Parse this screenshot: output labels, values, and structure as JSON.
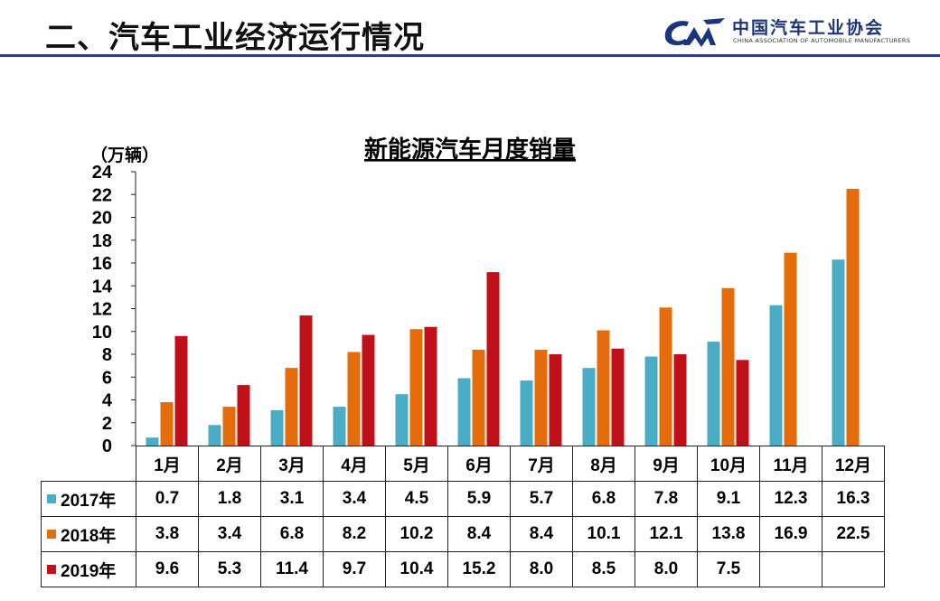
{
  "header": {
    "slide_title": "二、汽车工业经济运行情况",
    "logo_cn": "中国汽车工业协会",
    "logo_en": "CHINA ASSOCIATION OF AUTOMOBILE MANUFACTURERS",
    "logo_color": "#1c3479"
  },
  "chart_data": {
    "type": "bar",
    "title": "新能源汽车月度销量",
    "ylabel": "（万辆）",
    "xlabel": "",
    "ylim": [
      0,
      24
    ],
    "yticks": [
      0,
      2,
      4,
      6,
      8,
      10,
      12,
      14,
      16,
      18,
      20,
      22,
      24
    ],
    "grid": false,
    "legend": "data-table",
    "categories": [
      "1月",
      "2月",
      "3月",
      "4月",
      "5月",
      "6月",
      "7月",
      "8月",
      "9月",
      "10月",
      "11月",
      "12月"
    ],
    "series": [
      {
        "name": "2017年",
        "color": "#4bacc6",
        "values": [
          0.7,
          1.8,
          3.1,
          3.4,
          4.5,
          5.9,
          5.7,
          6.8,
          7.8,
          9.1,
          12.3,
          16.3
        ],
        "labels": [
          "0.7",
          "1.8",
          "3.1",
          "3.4",
          "4.5",
          "5.9",
          "5.7",
          "6.8",
          "7.8",
          "9.1",
          "12.3",
          "16.3"
        ]
      },
      {
        "name": "2018年",
        "color": "#e46c0a",
        "values": [
          3.8,
          3.4,
          6.8,
          8.2,
          10.2,
          8.4,
          8.4,
          10.1,
          12.1,
          13.8,
          16.9,
          22.5
        ],
        "labels": [
          "3.8",
          "3.4",
          "6.8",
          "8.2",
          "10.2",
          "8.4",
          "8.4",
          "10.1",
          "12.1",
          "13.8",
          "16.9",
          "22.5"
        ]
      },
      {
        "name": "2019年",
        "color": "#c0101a",
        "values": [
          9.6,
          5.3,
          11.4,
          9.7,
          10.4,
          15.2,
          8.0,
          8.5,
          8.0,
          7.5,
          null,
          null
        ],
        "labels": [
          "9.6",
          "5.3",
          "11.4",
          "9.7",
          "10.4",
          "15.2",
          "8.0",
          "8.5",
          "8.0",
          "7.5",
          "",
          ""
        ]
      }
    ]
  }
}
